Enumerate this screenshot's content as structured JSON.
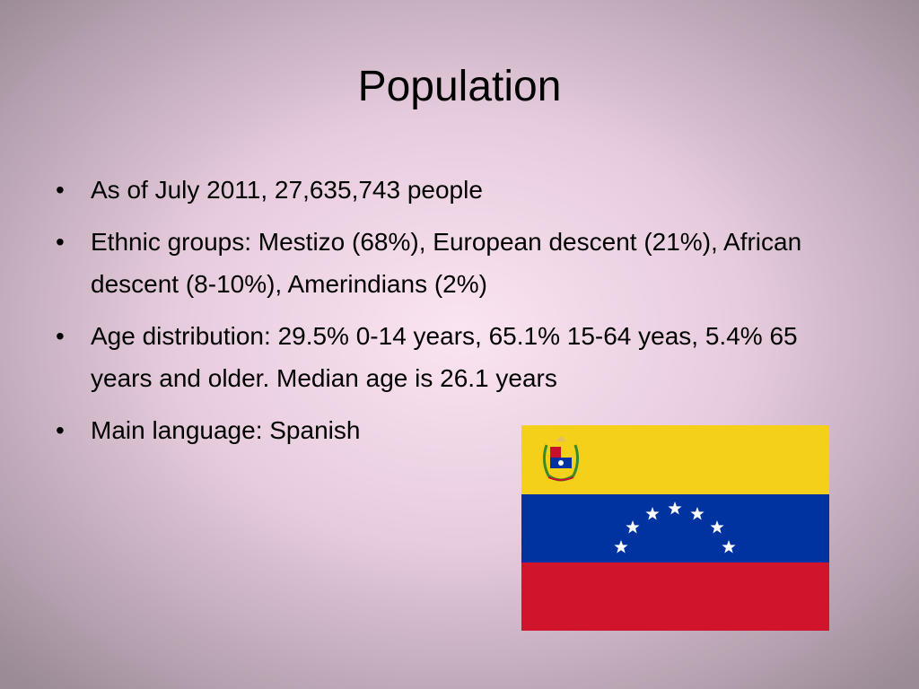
{
  "title": "Population",
  "bullets": [
    "As of July 2011, 27,635,743 people",
    "Ethnic groups: Mestizo (68%), European descent (21%), African descent (8-10%), Amerindians (2%)",
    "Age distribution: 29.5% 0-14 years, 65.1% 15-64 yeas, 5.4% 65 years and older. Median age is 26.1 years",
    "Main language: Spanish"
  ]
}
